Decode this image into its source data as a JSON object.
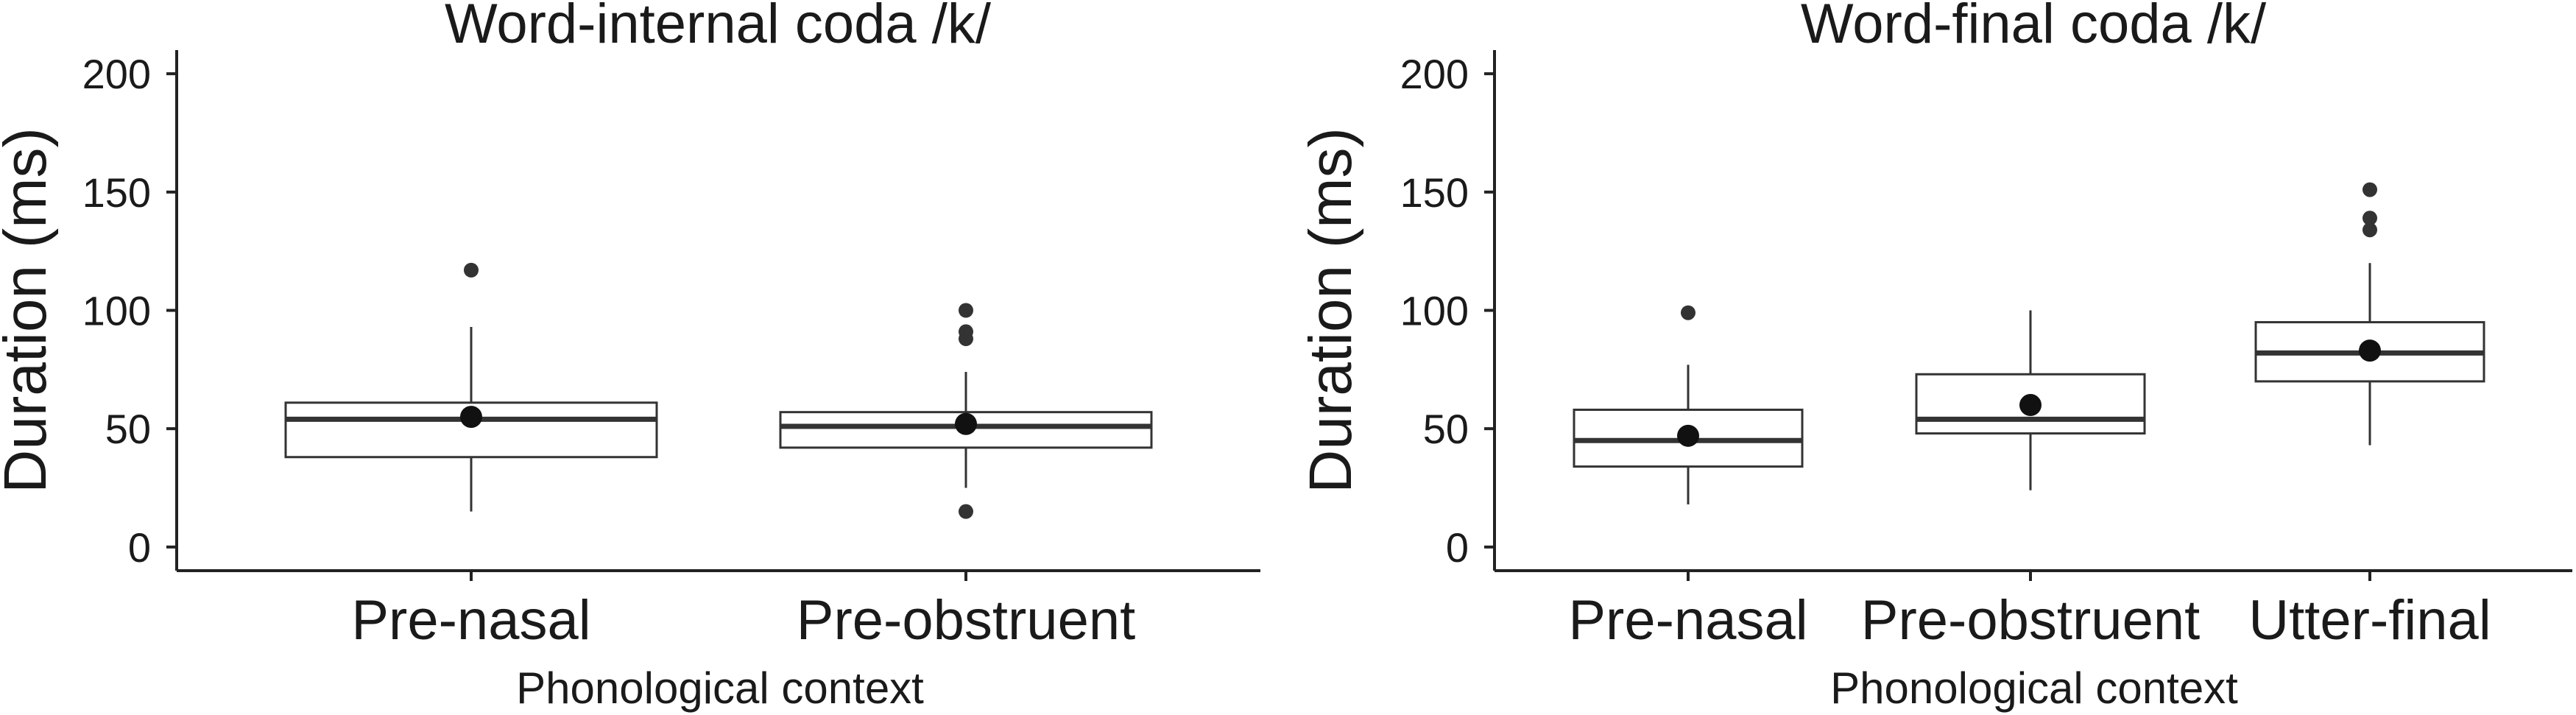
{
  "chart_data": [
    {
      "type": "box",
      "title": "Word-internal coda /k/",
      "xlabel": "Phonological context",
      "ylabel": "Duration (ms)",
      "ylim": [
        -10,
        210
      ],
      "yticks": [
        0,
        50,
        100,
        150,
        200
      ],
      "grid": false,
      "categories": [
        "Pre-nasal",
        "Pre-obstruent"
      ],
      "boxes": [
        {
          "category": "Pre-nasal",
          "whisker_low": 15,
          "q1": 38,
          "median": 54,
          "q3": 61,
          "whisker_high": 93,
          "mean": 55,
          "outliers": [
            117
          ]
        },
        {
          "category": "Pre-obstruent",
          "whisker_low": 25,
          "q1": 42,
          "median": 51,
          "q3": 57,
          "whisker_high": 74,
          "mean": 52,
          "outliers": [
            15,
            88,
            91,
            100
          ]
        }
      ]
    },
    {
      "type": "box",
      "title": "Word-final coda /k/",
      "xlabel": "Phonological context",
      "ylabel": "Duration (ms)",
      "ylim": [
        -10,
        210
      ],
      "yticks": [
        0,
        50,
        100,
        150,
        200
      ],
      "grid": false,
      "categories": [
        "Pre-nasal",
        "Pre-obstruent",
        "Utter-final"
      ],
      "boxes": [
        {
          "category": "Pre-nasal",
          "whisker_low": 18,
          "q1": 34,
          "median": 45,
          "q3": 58,
          "whisker_high": 77,
          "mean": 47,
          "outliers": [
            99
          ]
        },
        {
          "category": "Pre-obstruent",
          "whisker_low": 24,
          "q1": 48,
          "median": 54,
          "q3": 73,
          "whisker_high": 100,
          "mean": 60,
          "outliers": []
        },
        {
          "category": "Utter-final",
          "whisker_low": 43,
          "q1": 70,
          "median": 82,
          "q3": 95,
          "whisker_high": 120,
          "mean": 83,
          "outliers": [
            134,
            139,
            151
          ]
        }
      ]
    }
  ]
}
